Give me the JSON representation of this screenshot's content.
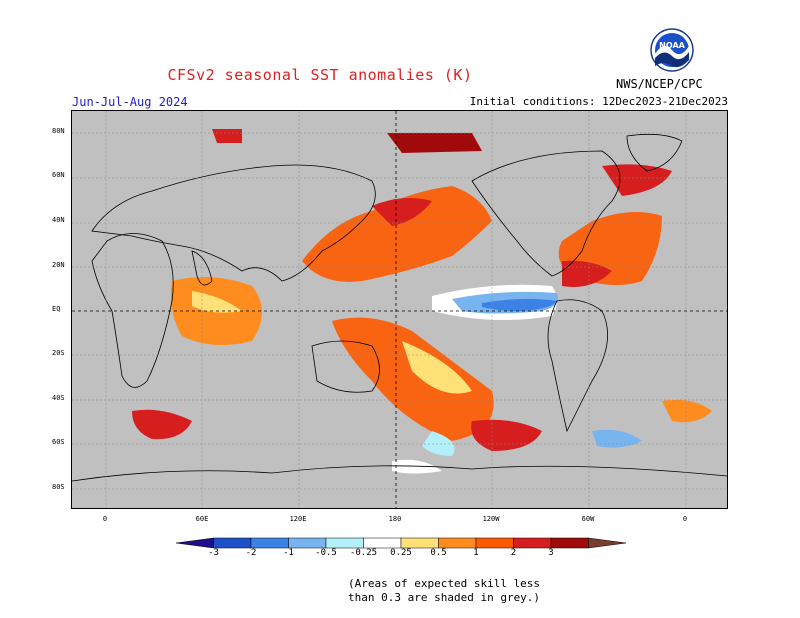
{
  "header": {
    "title": "CFSv2 seasonal SST anomalies (K)",
    "season": "Jun-Jul-Aug 2024",
    "initial_conditions": "Initial conditions: 12Dec2023-21Dec2023",
    "agency": "NWS/NCEP/CPC",
    "logo_text": "NOAA"
  },
  "colors": {
    "title": "#e02020",
    "season": "#2020c0",
    "land": "#c0c0c0"
  },
  "map": {
    "lat_labels": [
      "80N",
      "60N",
      "40N",
      "20N",
      "EQ",
      "20S",
      "40S",
      "60S",
      "80S"
    ],
    "lon_labels": [
      "0",
      "60E",
      "120E",
      "180",
      "120W",
      "60W",
      "0"
    ]
  },
  "legend": {
    "labels": [
      "-3",
      "-2",
      "-1",
      "-0.5",
      "-0.25",
      "0.25",
      "0.5",
      "1",
      "2",
      "3"
    ],
    "colors": [
      "#1e0f8c",
      "#1e50c8",
      "#3c82e6",
      "#78b4f0",
      "#b4f0fa",
      "#ffffff",
      "#ffe178",
      "#ff8c1e",
      "#ff5a00",
      "#d71e1e",
      "#a00a0a",
      "#7a3c2e"
    ]
  },
  "note": {
    "line1": "(Areas of expected skill less",
    "line2": "than 0.3 are shaded in grey.)"
  }
}
